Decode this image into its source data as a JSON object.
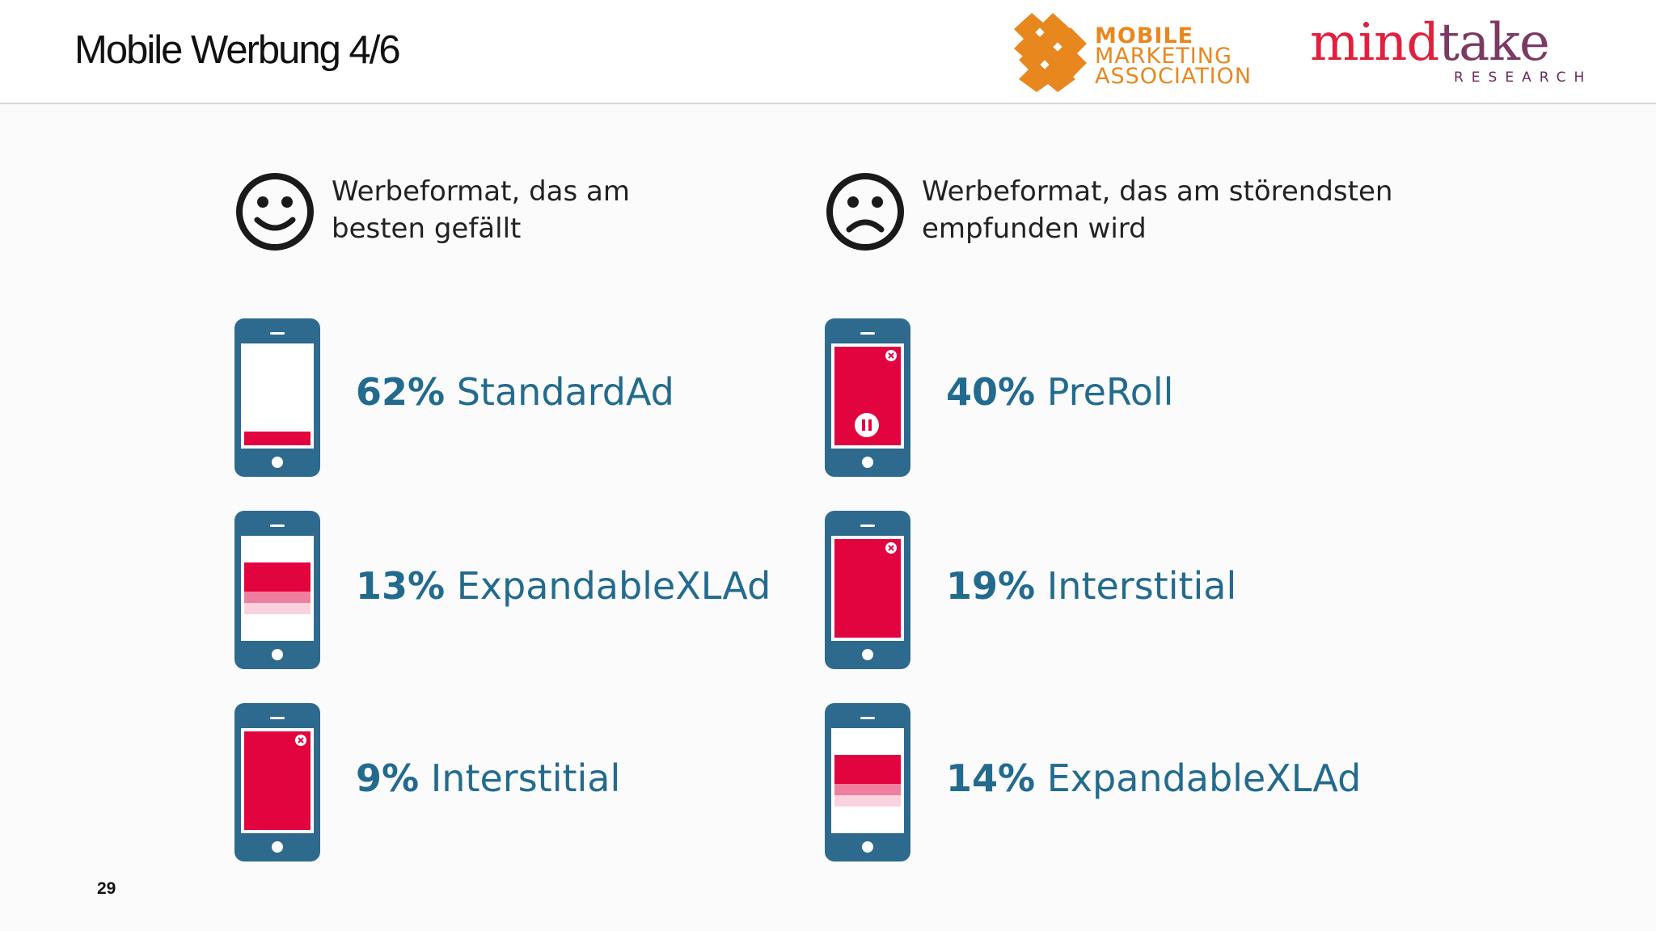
{
  "slide": {
    "title": "Mobile Werbung 4/6",
    "page_number": "29"
  },
  "logos": {
    "mma": {
      "line1": "MOBILE",
      "line2": "MARKETING",
      "line3": "ASSOCIATION",
      "color": "#e8871e"
    },
    "mindtake": {
      "word_a": "mind",
      "word_b": "take",
      "sub": "RESEARCH",
      "color": "#e0203e"
    }
  },
  "colors": {
    "accent_blue": "#236b8e",
    "phone_blue": "#2d6a8e",
    "ad_red": "#e2043f"
  },
  "columns": [
    {
      "heading": [
        "Werbeformat, das am",
        "besten gefällt"
      ],
      "face_icon": "smiley-icon",
      "items": [
        {
          "pct": "62%",
          "label": "StandardAd",
          "phone_icon": "standard-ad-phone-icon"
        },
        {
          "pct": "13%",
          "label": "ExpandableXLAd",
          "phone_icon": "expandable-ad-phone-icon"
        },
        {
          "pct": "9%",
          "label": "Interstitial",
          "phone_icon": "interstitial-phone-icon"
        }
      ]
    },
    {
      "heading": [
        "Werbeformat, das am störendsten",
        "empfunden wird"
      ],
      "face_icon": "frowny-icon",
      "items": [
        {
          "pct": "40%",
          "label": "PreRoll",
          "phone_icon": "preroll-phone-icon"
        },
        {
          "pct": "19%",
          "label": "Interstitial",
          "phone_icon": "interstitial-phone-icon"
        },
        {
          "pct": "14%",
          "label": "ExpandableXLAd",
          "phone_icon": "expandable-ad-phone-icon"
        }
      ]
    }
  ]
}
